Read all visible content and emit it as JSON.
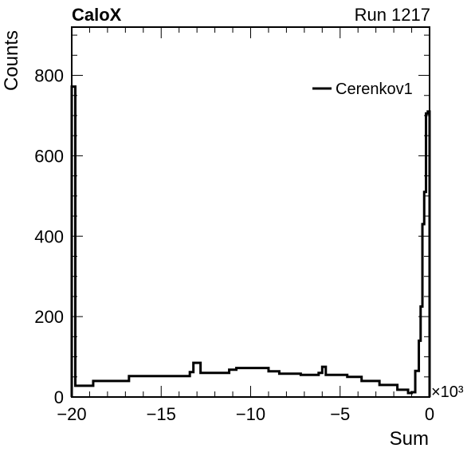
{
  "chart_data": {
    "type": "line",
    "title": "CaloX",
    "run_label": "Run 1217",
    "xlabel": "Sum",
    "ylabel": "Counts",
    "x_multiplier": "×10³",
    "xlim": [
      -20000,
      0
    ],
    "ylim": [
      0,
      920
    ],
    "x_ticks": [
      {
        "value": -20000,
        "label": "−20"
      },
      {
        "value": -15000,
        "label": "−15"
      },
      {
        "value": -10000,
        "label": "−10"
      },
      {
        "value": -5000,
        "label": "−5"
      },
      {
        "value": 0,
        "label": "0"
      }
    ],
    "y_ticks": [
      {
        "value": 0,
        "label": "0"
      },
      {
        "value": 200,
        "label": "200"
      },
      {
        "value": 400,
        "label": "400"
      },
      {
        "value": 600,
        "label": "600"
      },
      {
        "value": 800,
        "label": "800"
      }
    ],
    "grid": false,
    "legend": {
      "position": "top-right"
    },
    "series": [
      {
        "name": "Cerenkov1",
        "color": "#000000",
        "bin_edges": [
          -20000,
          -19800,
          -18800,
          -16800,
          -13400,
          -13200,
          -12800,
          -11200,
          -10800,
          -9000,
          -8400,
          -7200,
          -6200,
          -6000,
          -5800,
          -4600,
          -3800,
          -2800,
          -1800,
          -1200,
          -1000,
          -800,
          -600,
          -500,
          -400,
          -300,
          -200,
          -100,
          0
        ],
        "values": [
          772,
          28,
          40,
          52,
          62,
          85,
          60,
          68,
          72,
          64,
          58,
          55,
          60,
          75,
          55,
          50,
          40,
          30,
          18,
          10,
          12,
          65,
          140,
          225,
          430,
          510,
          705,
          710
        ]
      }
    ]
  }
}
